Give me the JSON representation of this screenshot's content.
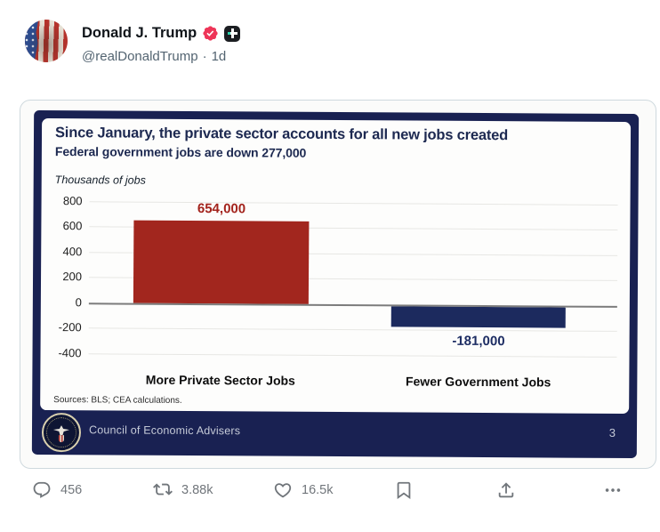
{
  "post": {
    "author": "Donald J. Trump",
    "handle": "@realDonaldTrump",
    "separator": "·",
    "time": "1d",
    "icons": {
      "verified_badge": "pink-scalloped-check",
      "truth_social_badge": "black-square-plus"
    }
  },
  "slide": {
    "title": "Since January, the private sector accounts for all new jobs created",
    "subtitle": "Federal government jobs are down 277,000",
    "axis_title": "Thousands of jobs",
    "sources": "Sources: BLS; CEA calculations.",
    "footer_org": "Council of Economic Advisers",
    "page_number": "3",
    "colors": {
      "frame_navy": "#192152",
      "title_navy": "#1d2951"
    }
  },
  "chart_data": {
    "type": "bar",
    "title": "Since January, the private sector accounts for all new jobs created",
    "subtitle": "Federal government jobs are down 277,000",
    "ylabel": "Thousands of jobs",
    "categories": [
      "More Private Sector Jobs",
      "Fewer Government Jobs"
    ],
    "values": [
      654,
      -181
    ],
    "value_labels": [
      "654,000",
      "-181,000"
    ],
    "bar_colors": [
      "#a2261e",
      "#1c2a5e"
    ],
    "label_colors": [
      "#a3231c",
      "#1d2d63"
    ],
    "yticks": [
      800,
      600,
      400,
      200,
      0,
      -200,
      -400
    ],
    "ylim": [
      -480,
      800
    ],
    "grid": true,
    "legend": false
  },
  "engagement": {
    "reply_count": "456",
    "repost_count": "3.88k",
    "like_count": "16.5k",
    "icons": {
      "reply": "speech-bubble",
      "repost": "recycle-arrows",
      "like": "heart-outline",
      "bookmark": "bookmark-outline",
      "share": "arrow-up-from-tray",
      "more": "ellipsis"
    }
  }
}
